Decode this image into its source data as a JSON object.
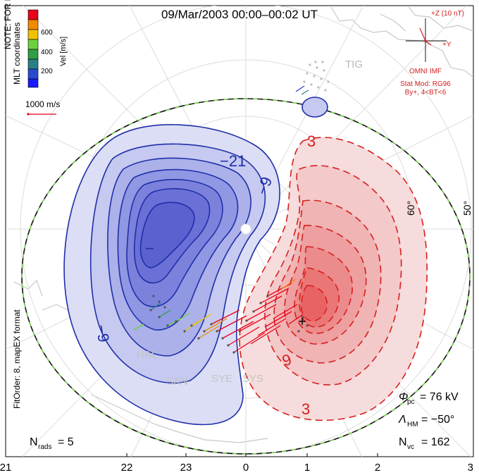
{
  "title": "09/Mar/2003 00:00–00:02 UT",
  "colorbar": {
    "label": "Vel [m/s]",
    "ticks": [
      "600",
      "400",
      "200"
    ],
    "colors": [
      "#e8001a",
      "#f28a00",
      "#f2c200",
      "#6ed13c",
      "#2f9e44",
      "#2a7f86",
      "#2b4ad1",
      "#1a1aff"
    ]
  },
  "coords_label": "MLT coordinates",
  "scale_vector": "1000 m/s",
  "watermark": "NOTE: FOR PREVIEW PURPOSES ONLY. PLEASE CONTACT VT-SD STAFF FOR VERIFICATION.",
  "fit_order": "FitOrder: 8, mapEX format",
  "imf": {
    "z_label": "+Z (10 nT)",
    "y_label": "+Y",
    "name": "OMNI IMF",
    "stat_mod": "Stat Mod: RG96",
    "cond": "By+, 4<BT<6"
  },
  "contour_labels": {
    "neg21": "−21",
    "neg9": "−9",
    "neg9b": "−9",
    "pos3_top": "3",
    "pos3_bot": "3",
    "pos9": "9",
    "minus_sign": "−"
  },
  "lat_labels": [
    "60°",
    "50°"
  ],
  "stations": [
    "TIG",
    "HAL",
    "SAN",
    "SYE",
    "SYS"
  ],
  "stats": {
    "phi_pc": "= 76 kV",
    "lambda_hm": "= −50°",
    "n_vc": "= 162",
    "n_rads": "= 5"
  },
  "mlt_ticks": [
    "21",
    "22",
    "23",
    "0",
    "1",
    "2",
    "3"
  ]
}
